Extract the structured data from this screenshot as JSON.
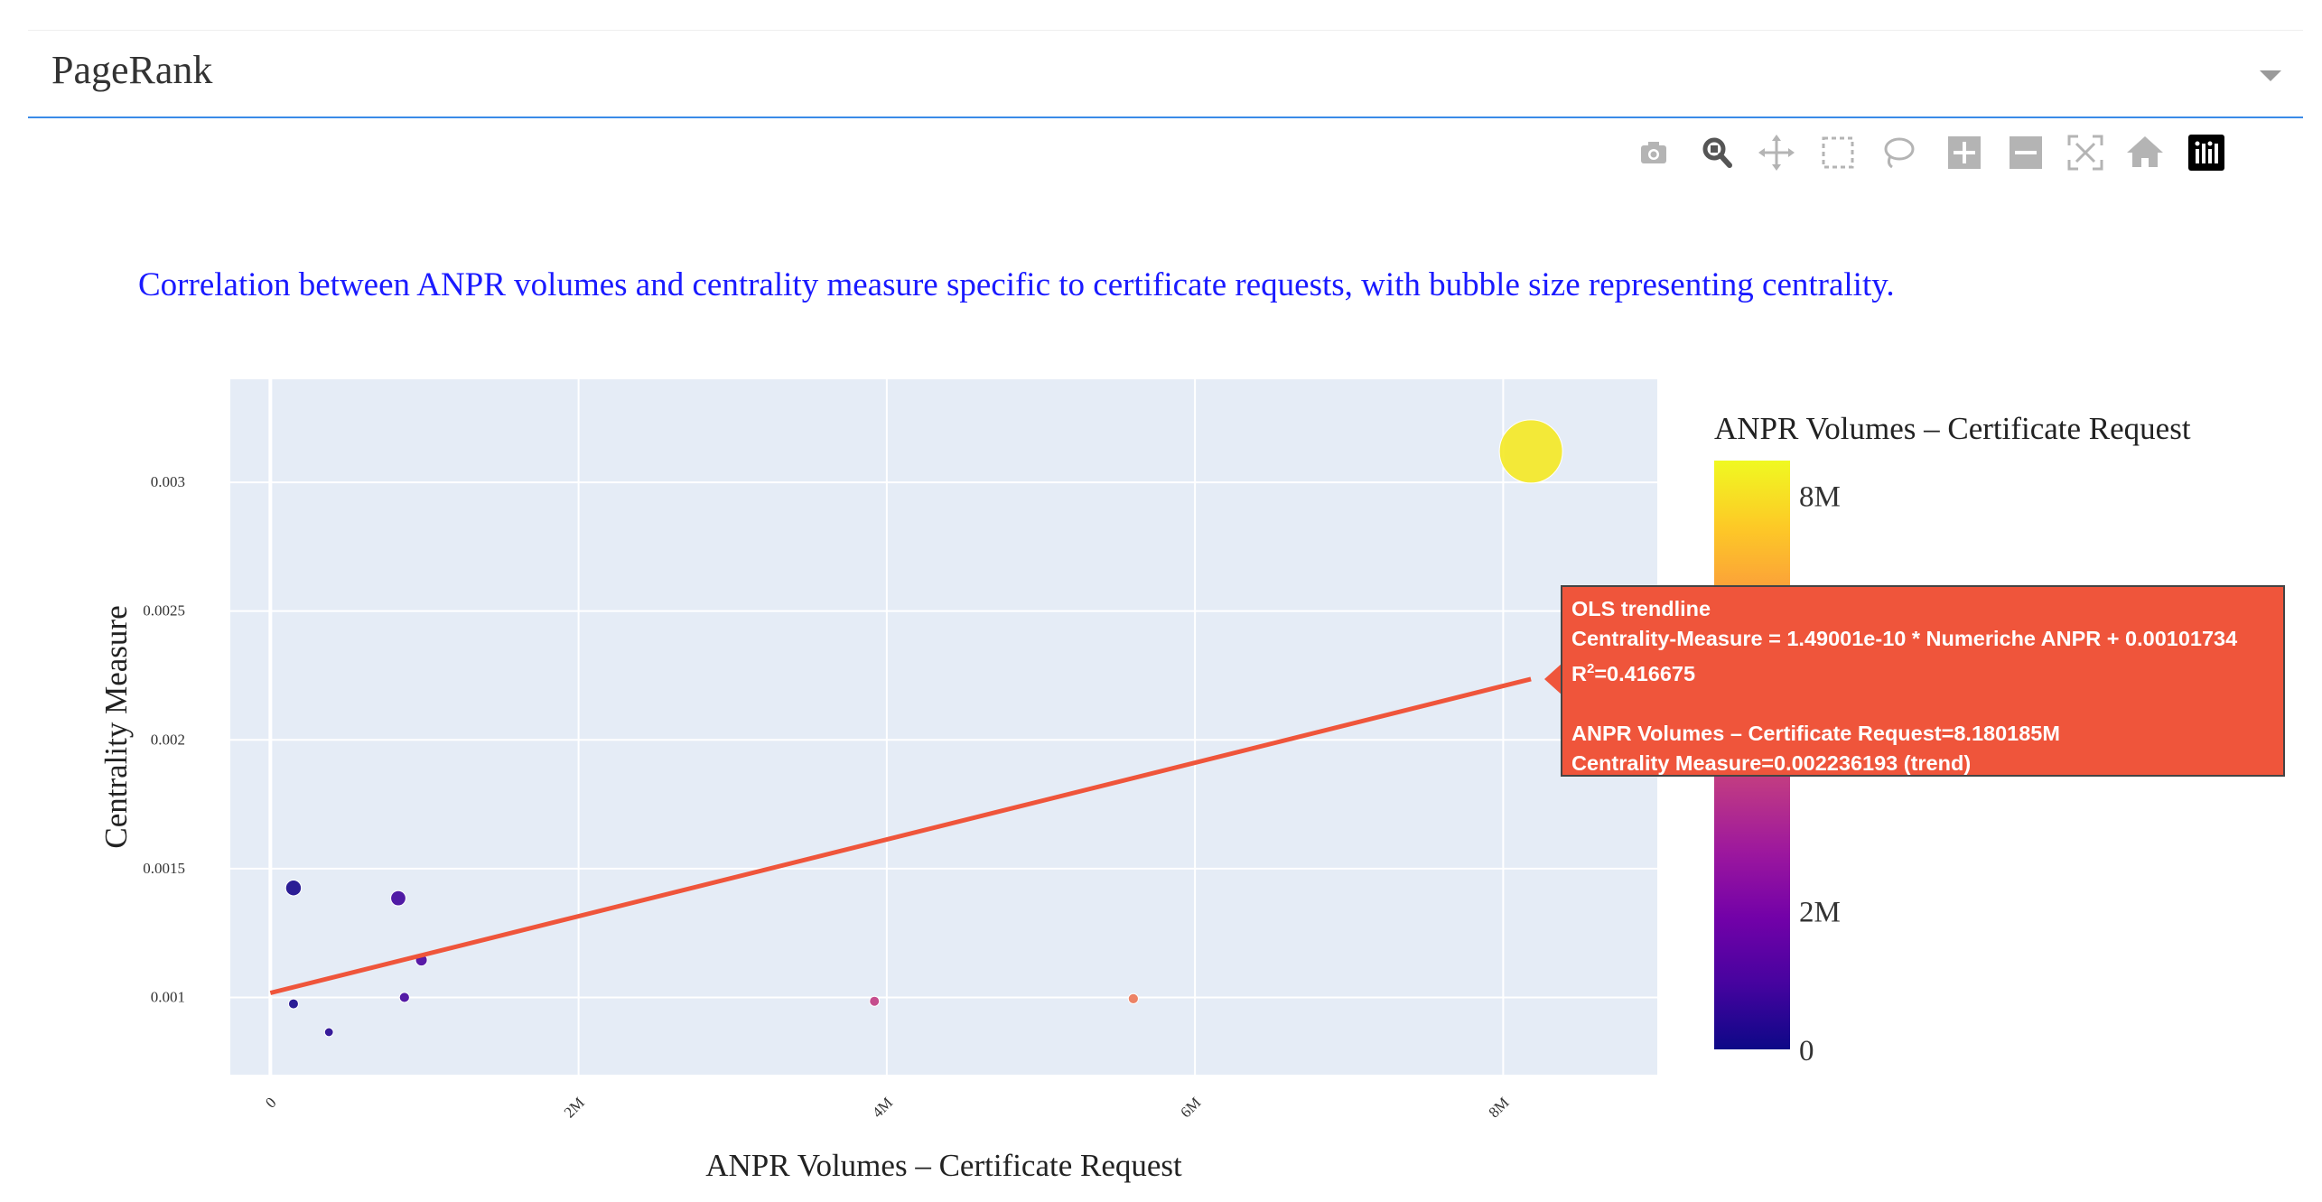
{
  "dropdown": {
    "value": "PageRank"
  },
  "modebar": {
    "buttons": [
      "camera-icon",
      "zoom-icon",
      "pan-icon",
      "box-select-icon",
      "lasso-select-icon",
      "zoom-in-icon",
      "zoom-out-icon",
      "autoscale-icon",
      "reset-axes-icon",
      "plotly-logo-icon"
    ]
  },
  "subtitle": "Correlation between ANPR volumes and centrality measure specific to certificate requests, with bubble size representing centrality.",
  "chart_data": {
    "type": "scatter",
    "xlabel": "ANPR Volumes – Certificate Request",
    "ylabel": "Centrality Measure",
    "xlim": [
      -260000,
      9000000
    ],
    "ylim": [
      0.0007,
      0.0034
    ],
    "x_ticks": [
      {
        "value": 0,
        "label": "0"
      },
      {
        "value": 2000000,
        "label": "2M"
      },
      {
        "value": 4000000,
        "label": "4M"
      },
      {
        "value": 6000000,
        "label": "6M"
      },
      {
        "value": 8000000,
        "label": "8M"
      }
    ],
    "y_ticks": [
      {
        "value": 0.001,
        "label": "0.001"
      },
      {
        "value": 0.0015,
        "label": "0.0015"
      },
      {
        "value": 0.002,
        "label": "0.002"
      },
      {
        "value": 0.0025,
        "label": "0.0025"
      },
      {
        "value": 0.003,
        "label": "0.003"
      }
    ],
    "points": [
      {
        "x": 150000,
        "y": 0.001425,
        "size": 0.001425
      },
      {
        "x": 150000,
        "y": 0.000975,
        "size": 0.000975
      },
      {
        "x": 380000,
        "y": 0.000865,
        "size": 0.000865
      },
      {
        "x": 830000,
        "y": 0.001385,
        "size": 0.001385
      },
      {
        "x": 870000,
        "y": 0.001,
        "size": 0.001
      },
      {
        "x": 980000,
        "y": 0.001145,
        "size": 0.001145
      },
      {
        "x": 3920000,
        "y": 0.000985,
        "size": 0.000985
      },
      {
        "x": 5600000,
        "y": 0.000995,
        "size": 0.000995
      },
      {
        "x": 8180185,
        "y": 0.00312,
        "size": 0.00312
      }
    ],
    "trendline": {
      "name": "OLS trendline",
      "slope": 1.49001e-10,
      "intercept": 0.00101734,
      "x_range": [
        0,
        8180185
      ]
    },
    "colorbar": {
      "title": "ANPR Volumes – Certificate Request",
      "min": 0,
      "max": 8500000,
      "ticks": [
        {
          "value": 0,
          "label": "0"
        },
        {
          "value": 2000000,
          "label": "2M"
        },
        {
          "value": 8000000,
          "label": "8M"
        }
      ],
      "colorscale": [
        "#0d0887",
        "#46039f",
        "#7201a8",
        "#9c179e",
        "#bd3786",
        "#d8576b",
        "#ed7953",
        "#fb9f3a",
        "#fdca26",
        "#f0f921"
      ]
    },
    "colors": {
      "plot_bg": "#e5ecf6",
      "grid": "#ffffff",
      "trend": "#ef553b"
    }
  },
  "tooltip": {
    "title": "OLS trendline",
    "equation": "Centrality-Measure = 1.49001e-10 * Numeriche ANPR + 0.00101734",
    "r2_prefix": "R",
    "r2_sup": "2",
    "r2_value": "=0.416675",
    "x_line": "ANPR Volumes – Certificate Request=8.180185M",
    "y_line_prefix": "Centrality Measure=0.002236193 ",
    "y_line_suffix": "(trend)"
  }
}
